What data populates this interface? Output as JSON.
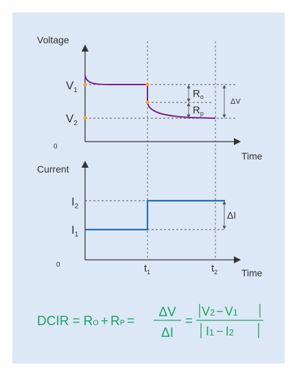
{
  "voltage_plot": {
    "y_axis_label": "Voltage",
    "x_axis_label": "Time",
    "origin_label": "0",
    "v1": "V",
    "v1_sub": "1",
    "v2": "V",
    "v2_sub": "2",
    "ro": "R",
    "ro_sub": "o",
    "rp": "R",
    "rp_sub": "p",
    "delta_v": "ΔV"
  },
  "current_plot": {
    "y_axis_label": "Current",
    "x_axis_label": "Time",
    "origin_label": "0",
    "i1": "I",
    "i1_sub": "1",
    "i2": "I",
    "i2_sub": "2",
    "delta_i": "ΔI",
    "t1": "t",
    "t1_sub": "1",
    "t2": "t",
    "t2_sub": "2"
  },
  "formula": {
    "lhs": "DCIR",
    "eq1": "=",
    "r": "R",
    "o_sub": "O",
    "plus": "+",
    "p_sub": "P",
    "eq2": "=",
    "frac1_num": "ΔV",
    "frac1_den": "ΔI",
    "eq3": "=",
    "num_a": "V",
    "num_a_sub": "2",
    "num_minus": "−",
    "num_b": "V",
    "num_b_sub": "1",
    "den_a": "I",
    "den_a_sub": "1",
    "den_minus": "−",
    "den_b": "I",
    "den_b_sub": "2"
  },
  "colors": {
    "panel_bg": "#dde8f6",
    "voltage_curve": "#7b1f88",
    "current_curve": "#1f6fb8",
    "marker": "#f5a623",
    "formula": "#1aa36a",
    "axis": "#333333",
    "guide": "#555555"
  }
}
